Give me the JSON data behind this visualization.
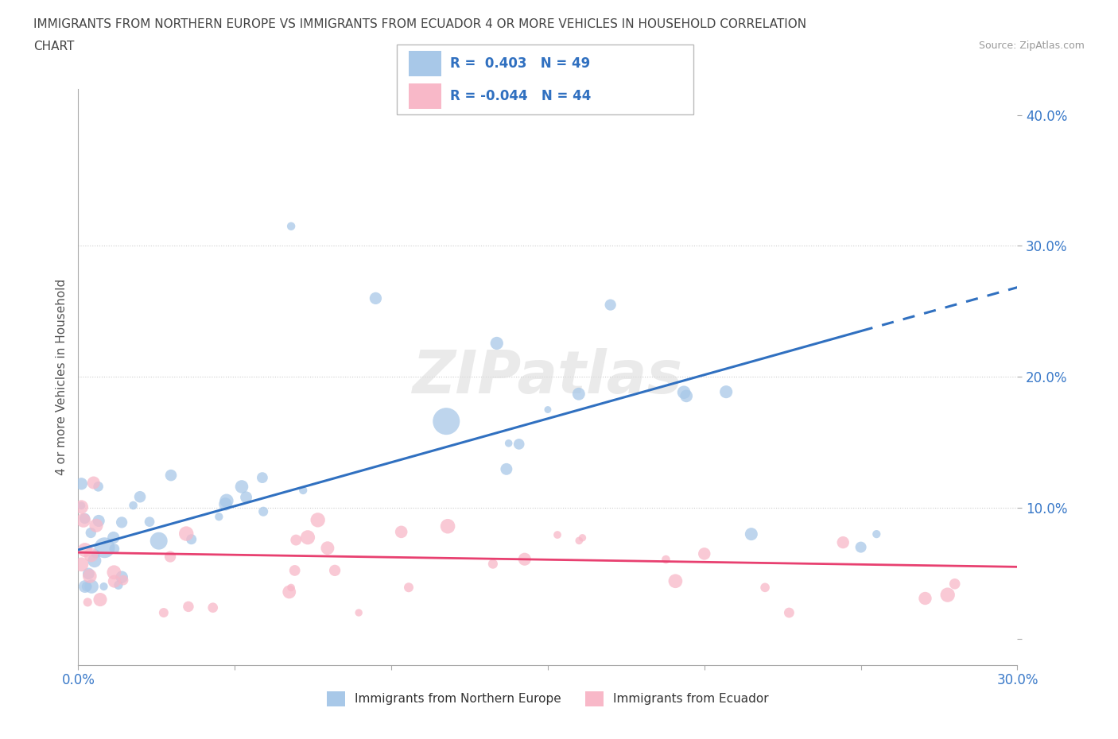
{
  "title_line1": "IMMIGRANTS FROM NORTHERN EUROPE VS IMMIGRANTS FROM ECUADOR 4 OR MORE VEHICLES IN HOUSEHOLD CORRELATION",
  "title_line2": "CHART",
  "source": "Source: ZipAtlas.com",
  "ylabel": "4 or more Vehicles in Household",
  "xlim": [
    0.0,
    0.3
  ],
  "ylim": [
    -0.02,
    0.42
  ],
  "r_blue": 0.403,
  "n_blue": 49,
  "r_pink": -0.044,
  "n_pink": 44,
  "blue_color": "#a8c8e8",
  "pink_color": "#f8b8c8",
  "blue_line_color": "#3070c0",
  "pink_line_color": "#e84070",
  "watermark": "ZIPatlas",
  "legend_label_blue": "Immigrants from Northern Europe",
  "legend_label_pink": "Immigrants from Ecuador"
}
